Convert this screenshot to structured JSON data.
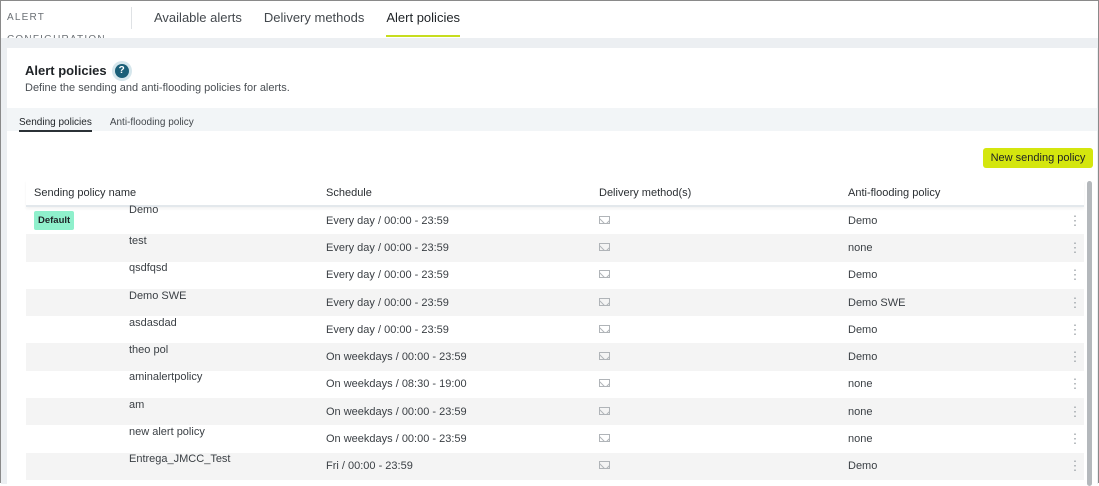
{
  "nav": {
    "brand": "ALERT CONFIGURATION",
    "tabs": [
      "Available alerts",
      "Delivery methods",
      "Alert policies"
    ],
    "active": 2
  },
  "page": {
    "title": "Alert policies",
    "description": "Define the sending and anti-flooding policies for alerts.",
    "help_icon": "question-circle-icon"
  },
  "subtabs": [
    "Sending policies",
    "Anti-flooding policy"
  ],
  "new_button": "New sending policy",
  "accent": "#d4e60e",
  "table": {
    "headers": [
      "Sending policy name",
      "Schedule",
      "Delivery method(s)",
      "Anti-flooding policy"
    ],
    "default_badge": "Default",
    "rows": [
      {
        "name": "Demo",
        "schedule": "Every day / 00:00 - 23:59",
        "delivery": "email-icon",
        "anti": "Demo",
        "default": true
      },
      {
        "name": "test",
        "schedule": "Every day / 00:00 - 23:59",
        "delivery": "email-icon",
        "anti": "none"
      },
      {
        "name": "qsdfqsd",
        "schedule": "Every day / 00:00 - 23:59",
        "delivery": "email-icon",
        "anti": "Demo"
      },
      {
        "name": "Demo SWE",
        "schedule": "Every day / 00:00 - 23:59",
        "delivery": "email-icon",
        "anti": "Demo SWE"
      },
      {
        "name": "asdasdad",
        "schedule": "Every day / 00:00 - 23:59",
        "delivery": "email-icon",
        "anti": "Demo"
      },
      {
        "name": "theo pol",
        "schedule": "On weekdays / 00:00 - 23:59",
        "delivery": "email-icon",
        "anti": "Demo"
      },
      {
        "name": "aminalertpolicy",
        "schedule": "On weekdays / 08:30 - 19:00",
        "delivery": "email-icon",
        "anti": "none"
      },
      {
        "name": "am",
        "schedule": "On weekdays / 00:00 - 23:59",
        "delivery": "email-icon",
        "anti": "none"
      },
      {
        "name": "new alert policy",
        "schedule": "On weekdays / 00:00 - 23:59",
        "delivery": "email-icon",
        "anti": "none"
      },
      {
        "name": "Entrega_JMCC_Test",
        "schedule": "Fri / 00:00 - 23:59",
        "delivery": "email-icon",
        "anti": "Demo"
      }
    ]
  }
}
